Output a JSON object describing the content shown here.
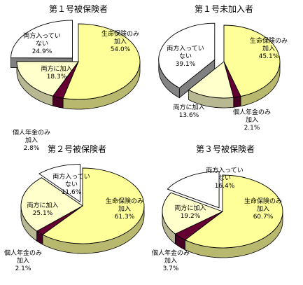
{
  "colors": {
    "life": "#FFFF99",
    "individual": "#660033",
    "both": "#FFFFCC",
    "neither": "#FFFFFF",
    "outline": "#000000"
  },
  "chart_data": [
    {
      "type": "pie",
      "title": "第１号被保険者",
      "slices": [
        {
          "label_lines": [
            "生命保険のみ",
            "加入"
          ],
          "value": 54.0,
          "value_text": "54.0%",
          "color_key": "life"
        },
        {
          "label_lines": [
            "個人年金のみ",
            "加入"
          ],
          "value": 2.8,
          "value_text": "2.8%",
          "color_key": "individual"
        },
        {
          "label_lines": [
            "両方に加入"
          ],
          "value": 18.3,
          "value_text": "18.3%",
          "color_key": "both"
        },
        {
          "label_lines": [
            "両方入ってい",
            "ない"
          ],
          "value": 24.9,
          "value_text": "24.9%",
          "color_key": "neither",
          "exploded": true
        }
      ]
    },
    {
      "type": "pie",
      "title": "第１号未加入者",
      "slices": [
        {
          "label_lines": [
            "生命保険のみ",
            "加入"
          ],
          "value": 45.1,
          "value_text": "45.1%",
          "color_key": "life"
        },
        {
          "label_lines": [
            "個人年金のみ",
            "加入"
          ],
          "value": 2.1,
          "value_text": "2.1%",
          "color_key": "individual"
        },
        {
          "label_lines": [
            "両方に加入"
          ],
          "value": 13.6,
          "value_text": "13.6%",
          "color_key": "both"
        },
        {
          "label_lines": [
            "両方入ってい",
            "ない"
          ],
          "value": 39.1,
          "value_text": "39.1%",
          "color_key": "neither",
          "exploded": true
        }
      ]
    },
    {
      "type": "pie",
      "title": "第２号被保険者",
      "slices": [
        {
          "label_lines": [
            "生命保険のみ",
            "加入"
          ],
          "value": 61.3,
          "value_text": "61.3%",
          "color_key": "life"
        },
        {
          "label_lines": [
            "個人年金のみ",
            "加入"
          ],
          "value": 2.1,
          "value_text": "2.1%",
          "color_key": "individual"
        },
        {
          "label_lines": [
            "両方に加入"
          ],
          "value": 25.1,
          "value_text": "25.1%",
          "color_key": "both"
        },
        {
          "label_lines": [
            "両方入ってい",
            "ない"
          ],
          "value": 11.6,
          "value_text": "11.6%",
          "color_key": "neither",
          "exploded": true
        }
      ]
    },
    {
      "type": "pie",
      "title": "第３号被保険者",
      "slices": [
        {
          "label_lines": [
            "生命保険のみ",
            "加入"
          ],
          "value": 60.7,
          "value_text": "60.7%",
          "color_key": "life"
        },
        {
          "label_lines": [
            "個人年金のみ",
            "加入"
          ],
          "value": 3.7,
          "value_text": "3.7%",
          "color_key": "individual"
        },
        {
          "label_lines": [
            "両方に加入"
          ],
          "value": 19.2,
          "value_text": "19.2%",
          "color_key": "both"
        },
        {
          "label_lines": [
            "両方入ってい",
            "ない"
          ],
          "value": 16.4,
          "value_text": "16.4%",
          "color_key": "neither",
          "exploded": true
        }
      ]
    }
  ]
}
